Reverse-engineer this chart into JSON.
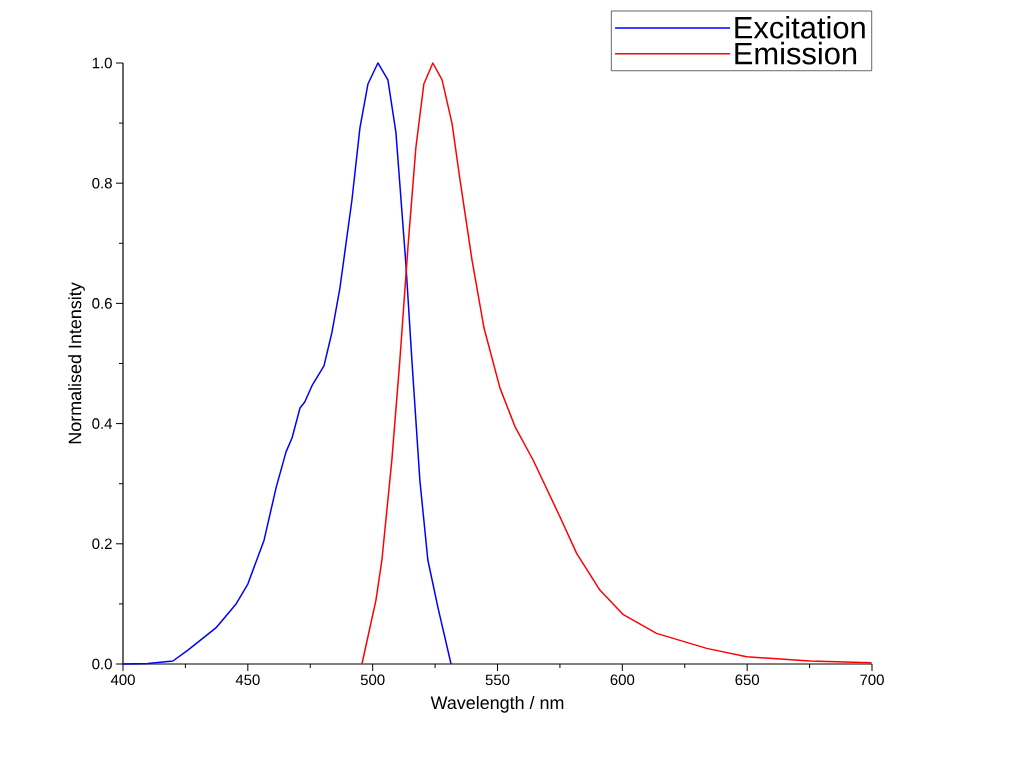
{
  "chart_data": {
    "type": "line",
    "xlabel": "Wavelength / nm",
    "ylabel": "Normalised Intensity",
    "xlim": [
      400,
      700
    ],
    "ylim": [
      0,
      1.0
    ],
    "xticks": [
      400,
      450,
      500,
      550,
      600,
      650,
      700
    ],
    "yticks": [
      {
        "value": 0,
        "label": "0.0"
      },
      {
        "value": 0.2,
        "label": "0.2"
      },
      {
        "value": 0.4,
        "label": "0.4"
      },
      {
        "value": 0.6,
        "label": "0.6"
      },
      {
        "value": 0.8,
        "label": "0.8"
      },
      {
        "value": 1.0,
        "label": "1.0"
      }
    ],
    "legend": "top right",
    "grid": false,
    "marker": "none",
    "line_style": "solid",
    "series": [
      {
        "name": "Excitation",
        "color": "#0000ff",
        "x": [
          400,
          410,
          420,
          426,
          437.2,
          445.3,
          450,
          456.5,
          461.3,
          465.3,
          467.7,
          470.9,
          472.8,
          475.7,
          480.5,
          483.7,
          486.9,
          491.7,
          494.9,
          498.1,
          502.1,
          506.1,
          509.3,
          513.3,
          515.7,
          518.9,
          522.1,
          526.2,
          531.4
        ],
        "values": [
          0,
          0.001,
          0.005,
          0.023,
          0.06,
          0.1,
          0.133,
          0.206,
          0.293,
          0.353,
          0.376,
          0.426,
          0.436,
          0.463,
          0.496,
          0.552,
          0.626,
          0.772,
          0.892,
          0.965,
          1.0,
          0.972,
          0.885,
          0.666,
          0.506,
          0.306,
          0.173,
          0.093,
          0
        ]
      },
      {
        "name": "Emission",
        "color": "#ff0000",
        "x": [
          495.7,
          501.3,
          503.7,
          507.7,
          510.9,
          514.1,
          517.3,
          520.5,
          524.1,
          527.8,
          531.8,
          535,
          539.8,
          544.6,
          551,
          557,
          564.3,
          575,
          581.7,
          591,
          600.4,
          613.7,
          633.8,
          649.8,
          675.1,
          699.8
        ],
        "values": [
          0,
          0.106,
          0.173,
          0.34,
          0.506,
          0.692,
          0.859,
          0.965,
          1.0,
          0.972,
          0.899,
          0.805,
          0.672,
          0.559,
          0.459,
          0.395,
          0.339,
          0.245,
          0.184,
          0.123,
          0.082,
          0.051,
          0.026,
          0.012,
          0.005,
          0.002
        ]
      }
    ]
  }
}
